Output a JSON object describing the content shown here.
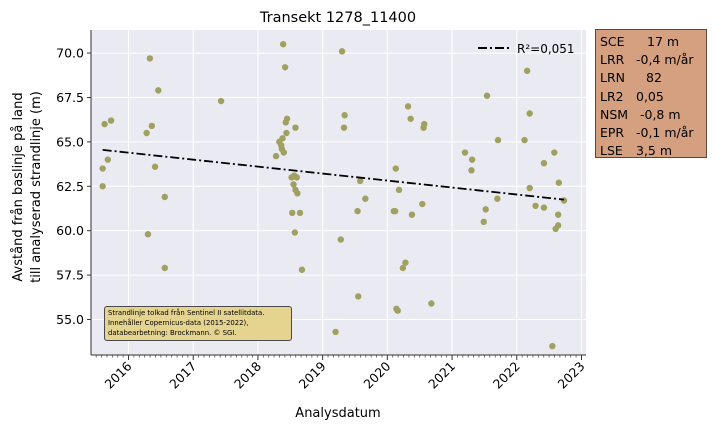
{
  "chart_data": {
    "type": "scatter",
    "title": "Transekt 1278_11400",
    "xlabel": "Analysdatum",
    "ylabel_lines": [
      "Avstånd från baslinje på land",
      "till analyserad strandlinje (m)"
    ],
    "xlim": [
      2015.42,
      2023.07
    ],
    "ylim": [
      53.0,
      71.3
    ],
    "x_ticks": [
      2016,
      2017,
      2018,
      2019,
      2020,
      2021,
      2022,
      2023
    ],
    "x_tick_labels": [
      "2016",
      "2017",
      "2018",
      "2019",
      "2020",
      "2021",
      "2022",
      "2023"
    ],
    "y_ticks": [
      55.0,
      57.5,
      60.0,
      62.5,
      65.0,
      67.5,
      70.0
    ],
    "y_tick_labels": [
      "55.0",
      "57.5",
      "60.0",
      "62.5",
      "65.0",
      "67.5",
      "70.0"
    ],
    "grid": true,
    "legend_position": "top-right",
    "series": [
      {
        "kind": "points",
        "color": "#a0a060",
        "points": [
          [
            2015.6,
            63.5
          ],
          [
            2015.6,
            62.5
          ],
          [
            2015.63,
            66.0
          ],
          [
            2015.68,
            64.0
          ],
          [
            2015.73,
            66.2
          ],
          [
            2016.28,
            65.5
          ],
          [
            2016.3,
            59.8
          ],
          [
            2016.33,
            69.7
          ],
          [
            2016.36,
            65.9
          ],
          [
            2016.41,
            63.6
          ],
          [
            2016.46,
            67.9
          ],
          [
            2016.56,
            61.9
          ],
          [
            2016.56,
            57.9
          ],
          [
            2017.43,
            67.3
          ],
          [
            2018.28,
            64.2
          ],
          [
            2018.33,
            65.0
          ],
          [
            2018.36,
            64.8
          ],
          [
            2018.37,
            64.6
          ],
          [
            2018.38,
            65.2
          ],
          [
            2018.39,
            70.5
          ],
          [
            2018.4,
            64.4
          ],
          [
            2018.42,
            69.2
          ],
          [
            2018.43,
            66.1
          ],
          [
            2018.44,
            65.5
          ],
          [
            2018.45,
            66.3
          ],
          [
            2018.52,
            63.0
          ],
          [
            2018.53,
            61.0
          ],
          [
            2018.55,
            62.6
          ],
          [
            2018.56,
            63.1
          ],
          [
            2018.57,
            59.9
          ],
          [
            2018.58,
            62.3
          ],
          [
            2018.58,
            65.8
          ],
          [
            2018.6,
            63.0
          ],
          [
            2018.61,
            62.1
          ],
          [
            2018.65,
            61.0
          ],
          [
            2018.68,
            57.8
          ],
          [
            2019.2,
            54.3
          ],
          [
            2019.28,
            59.5
          ],
          [
            2019.3,
            70.1
          ],
          [
            2019.33,
            65.8
          ],
          [
            2019.34,
            66.5
          ],
          [
            2019.54,
            61.1
          ],
          [
            2019.55,
            56.3
          ],
          [
            2019.58,
            62.8
          ],
          [
            2019.66,
            61.8
          ],
          [
            2020.1,
            61.1
          ],
          [
            2020.12,
            61.1
          ],
          [
            2020.13,
            63.5
          ],
          [
            2020.14,
            55.6
          ],
          [
            2020.16,
            55.5
          ],
          [
            2020.18,
            62.3
          ],
          [
            2020.24,
            57.9
          ],
          [
            2020.28,
            58.2
          ],
          [
            2020.32,
            67.0
          ],
          [
            2020.36,
            66.3
          ],
          [
            2020.38,
            60.9
          ],
          [
            2020.54,
            61.5
          ],
          [
            2020.56,
            65.8
          ],
          [
            2020.57,
            66.0
          ],
          [
            2020.68,
            55.9
          ],
          [
            2021.2,
            64.4
          ],
          [
            2021.3,
            63.4
          ],
          [
            2021.31,
            64.0
          ],
          [
            2021.49,
            60.5
          ],
          [
            2021.52,
            61.2
          ],
          [
            2021.54,
            67.6
          ],
          [
            2021.7,
            61.8
          ],
          [
            2021.71,
            65.1
          ],
          [
            2022.12,
            65.1
          ],
          [
            2022.16,
            69.0
          ],
          [
            2022.2,
            66.6
          ],
          [
            2022.2,
            62.4
          ],
          [
            2022.29,
            61.4
          ],
          [
            2022.42,
            61.3
          ],
          [
            2022.42,
            63.8
          ],
          [
            2022.55,
            53.5
          ],
          [
            2022.58,
            64.4
          ],
          [
            2022.6,
            60.1
          ],
          [
            2022.64,
            60.9
          ],
          [
            2022.64,
            60.3
          ],
          [
            2022.65,
            62.7
          ],
          [
            2022.73,
            61.7
          ]
        ]
      },
      {
        "kind": "trend",
        "name": "R²=0,051",
        "color": "#000000",
        "x": [
          2015.6,
          2022.73
        ],
        "y": [
          64.55,
          61.75
        ]
      }
    ]
  },
  "stats": [
    {
      "key": "SCE",
      "value": "17 m"
    },
    {
      "key": "LRR",
      "value": "-0,4 m/år"
    },
    {
      "key": "LRN",
      "value": "82"
    },
    {
      "key": "LR2",
      "value": "0,05"
    },
    {
      "key": "NSM",
      "value": "-0,8 m"
    },
    {
      "key": "EPR",
      "value": "-0,1 m/år"
    },
    {
      "key": "LSE",
      "value": "3,5 m"
    }
  ],
  "credit": [
    "Strandlinje tolkad från Sentinel II satellitdata.",
    "Innehåller Copernicus-data (2015-2022),",
    "databearbetning: Brockmann. © SGI."
  ],
  "colors": {
    "plot_bg": "#eaeaf2",
    "grid": "#ffffff",
    "points": "#a0a060",
    "trend": "#000000",
    "stats_bg": "#d4a080",
    "credit_bg": "#e4d490"
  }
}
